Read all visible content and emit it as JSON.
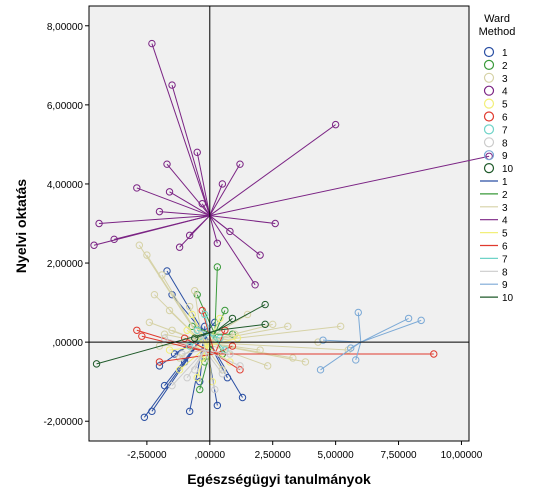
{
  "chart_data": {
    "type": "scatter",
    "xlabel": "Egészségügyi tanulmányok",
    "ylabel": "Nyelvi oktatás",
    "xlim": [
      -4.8,
      10.3
    ],
    "ylim": [
      -2.5,
      8.5
    ],
    "x_ticks": [
      -2.5,
      0,
      2.5,
      5,
      7.5,
      10
    ],
    "x_tick_labels": [
      "-2,50000",
      ",00000",
      "2,50000",
      "5,00000",
      "7,50000",
      "10,00000"
    ],
    "y_ticks": [
      -2,
      0,
      2,
      4,
      6,
      8
    ],
    "y_tick_labels": [
      "-2,00000",
      ",00000",
      "2,00000",
      "4,00000",
      "6,00000",
      "8,00000"
    ],
    "reference_lines": {
      "x": 0,
      "y": 0
    },
    "legend": {
      "title": [
        "Ward",
        "Method"
      ],
      "position": "right"
    },
    "series": [
      {
        "name": "1",
        "color": "#2a4fa3",
        "centroid": [
          -0.2,
          0.2
        ],
        "points": [
          [
            -2.6,
            -1.9
          ],
          [
            -2.3,
            -1.75
          ],
          [
            -0.8,
            -1.75
          ],
          [
            0.3,
            -1.6
          ],
          [
            1.3,
            -1.4
          ],
          [
            -1.8,
            -1.1
          ],
          [
            -0.4,
            -1.0
          ],
          [
            -2.0,
            -0.6
          ],
          [
            -1.4,
            -0.3
          ],
          [
            -0.2,
            0.4
          ],
          [
            -1.7,
            1.8
          ],
          [
            -1.5,
            1.2
          ],
          [
            0.7,
            -0.9
          ],
          [
            -1.0,
            -0.5
          ],
          [
            0.2,
            0.5
          ]
        ]
      },
      {
        "name": "2",
        "color": "#3a9a3a",
        "centroid": [
          0.2,
          0.2
        ],
        "points": [
          [
            -0.4,
            -1.2
          ],
          [
            0.3,
            1.9
          ],
          [
            -0.7,
            0.4
          ],
          [
            0.6,
            0.8
          ],
          [
            -0.2,
            -0.5
          ],
          [
            0.5,
            -0.3
          ],
          [
            -0.5,
            1.2
          ],
          [
            0.9,
            0.2
          ]
        ]
      },
      {
        "name": "3",
        "color": "#d6d2a6",
        "centroid": [
          -0.3,
          0.0
        ],
        "points": [
          [
            -2.8,
            2.45
          ],
          [
            -2.5,
            2.2
          ],
          [
            -1.9,
            1.7
          ],
          [
            -2.2,
            1.2
          ],
          [
            -1.6,
            0.8
          ],
          [
            -2.4,
            0.5
          ],
          [
            -1.8,
            0.2
          ],
          [
            2.5,
            0.45
          ],
          [
            3.1,
            0.4
          ],
          [
            5.2,
            0.4
          ],
          [
            4.3,
            0.0
          ],
          [
            5.5,
            -0.2
          ],
          [
            3.8,
            -0.5
          ],
          [
            2.3,
            -0.6
          ],
          [
            -1.2,
            -0.4
          ],
          [
            -2.0,
            -0.1
          ],
          [
            -0.8,
            0.9
          ],
          [
            1.5,
            0.7
          ],
          [
            2.0,
            -0.2
          ],
          [
            -1.5,
            0.3
          ],
          [
            3.3,
            -0.4
          ],
          [
            1.0,
            0.2
          ],
          [
            -0.6,
            1.3
          ],
          [
            0.5,
            -0.7
          ]
        ]
      },
      {
        "name": "4",
        "color": "#7b2484",
        "centroid": [
          0.0,
          3.2
        ],
        "points": [
          [
            -2.3,
            7.55
          ],
          [
            -1.5,
            6.5
          ],
          [
            5.0,
            5.5
          ],
          [
            11.1,
            4.7
          ],
          [
            -1.7,
            4.5
          ],
          [
            -0.5,
            4.8
          ],
          [
            1.2,
            4.5
          ],
          [
            -2.9,
            3.9
          ],
          [
            -1.6,
            3.8
          ],
          [
            0.5,
            4.0
          ],
          [
            -4.4,
            3.0
          ],
          [
            -3.8,
            2.6
          ],
          [
            -4.6,
            2.45
          ],
          [
            -2.0,
            3.3
          ],
          [
            -0.8,
            2.7
          ],
          [
            2.6,
            3.0
          ],
          [
            -1.2,
            2.4
          ],
          [
            0.8,
            2.8
          ],
          [
            2.0,
            2.2
          ],
          [
            1.8,
            1.45
          ],
          [
            -0.3,
            3.5
          ],
          [
            0.3,
            2.5
          ]
        ]
      },
      {
        "name": "5",
        "color": "#f2ef7a",
        "centroid": [
          -0.1,
          -0.1
        ],
        "points": [
          [
            -1.2,
            -0.7
          ],
          [
            -0.5,
            -0.9
          ],
          [
            0.8,
            -0.5
          ],
          [
            -0.9,
            0.3
          ],
          [
            0.4,
            0.6
          ],
          [
            -0.3,
            -0.4
          ],
          [
            1.1,
            0.1
          ],
          [
            -1.6,
            -0.2
          ],
          [
            0.1,
            -1.0
          ],
          [
            -0.7,
            0.7
          ]
        ]
      },
      {
        "name": "6",
        "color": "#e03a2e",
        "centroid": [
          0.2,
          -0.3
        ],
        "points": [
          [
            8.9,
            -0.3
          ],
          [
            -2.7,
            0.15
          ],
          [
            -2.9,
            0.3
          ],
          [
            -2.0,
            -0.5
          ],
          [
            0.9,
            -0.1
          ],
          [
            -0.3,
            0.8
          ],
          [
            1.2,
            -0.7
          ],
          [
            -1.0,
            0.1
          ],
          [
            0.6,
            0.3
          ]
        ]
      },
      {
        "name": "7",
        "color": "#6fd3c8",
        "centroid": [
          0.0,
          0.2
        ],
        "points": [
          [
            -0.5,
            0.3
          ],
          [
            0.4,
            0.1
          ],
          [
            -0.2,
            0.7
          ],
          [
            0.6,
            -0.2
          ],
          [
            -0.8,
            -0.1
          ]
        ]
      },
      {
        "name": "8",
        "color": "#cccccc",
        "centroid": [
          -0.2,
          -0.2
        ],
        "points": [
          [
            -1.5,
            -1.1
          ],
          [
            -0.6,
            -0.7
          ],
          [
            0.5,
            -0.8
          ],
          [
            -1.1,
            -0.3
          ],
          [
            0.8,
            -0.3
          ],
          [
            -0.3,
            0.2
          ],
          [
            -1.8,
            0.1
          ],
          [
            1.2,
            -0.6
          ],
          [
            -0.9,
            -0.9
          ],
          [
            0.2,
            -1.2
          ]
        ]
      },
      {
        "name": "9",
        "color": "#7ba9d6",
        "centroid": [
          6.0,
          0.0
        ],
        "points": [
          [
            4.5,
            0.05
          ],
          [
            5.6,
            -0.15
          ],
          [
            5.8,
            -0.45
          ],
          [
            4.4,
            -0.7
          ],
          [
            5.9,
            0.75
          ],
          [
            7.9,
            0.6
          ],
          [
            8.4,
            0.55
          ]
        ]
      },
      {
        "name": "10",
        "color": "#1f5a2a",
        "centroid": [
          0.3,
          0.3
        ],
        "points": [
          [
            -4.5,
            -0.55
          ],
          [
            2.2,
            0.45
          ],
          [
            2.2,
            0.95
          ],
          [
            0.9,
            0.6
          ],
          [
            -0.6,
            0.1
          ]
        ]
      }
    ]
  }
}
